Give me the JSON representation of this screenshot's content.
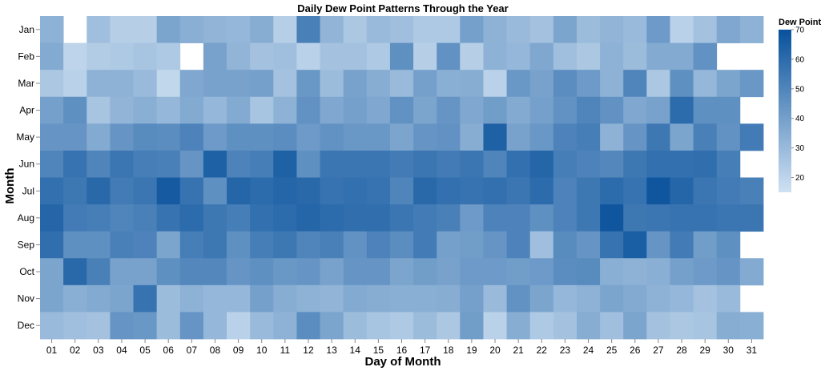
{
  "chart_data": {
    "type": "heatmap",
    "title": "Daily Dew Point Patterns Through the Year",
    "xlabel": "Day of Month",
    "ylabel": "Month",
    "x_categories": [
      "01",
      "02",
      "03",
      "04",
      "05",
      "06",
      "07",
      "08",
      "09",
      "10",
      "11",
      "12",
      "13",
      "14",
      "15",
      "16",
      "17",
      "18",
      "19",
      "20",
      "21",
      "22",
      "23",
      "24",
      "25",
      "26",
      "27",
      "28",
      "29",
      "30",
      "31"
    ],
    "y_categories": [
      "Jan",
      "Feb",
      "Mar",
      "Apr",
      "May",
      "Jun",
      "Jul",
      "Aug",
      "Sep",
      "Oct",
      "Nov",
      "Dec"
    ],
    "legend": {
      "title": "Dew Point",
      "placement": "top-right",
      "ticks": [
        20,
        30,
        40,
        50,
        60,
        70
      ],
      "domain": [
        15,
        70
      ]
    },
    "color_range": [
      "#cfe1f2",
      "#08519c"
    ],
    "values": [
      [
        33,
        null,
        28,
        22,
        22,
        38,
        34,
        32,
        31,
        35,
        22,
        52,
        32,
        25,
        30,
        28,
        24,
        24,
        40,
        33,
        30,
        27,
        38,
        29,
        32,
        30,
        42,
        21,
        27,
        37,
        33
      ],
      [
        36,
        20,
        23,
        24,
        26,
        24,
        null,
        39,
        32,
        27,
        28,
        21,
        27,
        27,
        24,
        46,
        22,
        45,
        22,
        33,
        31,
        37,
        28,
        25,
        33,
        29,
        36,
        36,
        45,
        null,
        null
      ],
      [
        25,
        21,
        33,
        33,
        30,
        19,
        37,
        39,
        39,
        40,
        27,
        43,
        29,
        39,
        35,
        30,
        40,
        34,
        35,
        21,
        43,
        39,
        47,
        42,
        33,
        50,
        25,
        46,
        31,
        38,
        43
      ],
      [
        40,
        46,
        26,
        32,
        34,
        31,
        36,
        31,
        36,
        26,
        33,
        45,
        37,
        40,
        37,
        45,
        38,
        44,
        37,
        41,
        36,
        40,
        45,
        50,
        45,
        37,
        39,
        60,
        46,
        46,
        null
      ],
      [
        44,
        44,
        36,
        44,
        48,
        47,
        51,
        42,
        46,
        46,
        47,
        42,
        45,
        43,
        43,
        38,
        44,
        45,
        35,
        64,
        39,
        43,
        51,
        53,
        33,
        44,
        55,
        38,
        52,
        45,
        54
      ],
      [
        50,
        57,
        50,
        56,
        53,
        52,
        44,
        64,
        51,
        53,
        64,
        46,
        56,
        56,
        56,
        54,
        56,
        54,
        56,
        50,
        58,
        62,
        53,
        51,
        49,
        55,
        58,
        58,
        59,
        53,
        null
      ],
      [
        58,
        55,
        61,
        54,
        56,
        66,
        57,
        46,
        62,
        60,
        62,
        61,
        57,
        58,
        57,
        50,
        61,
        58,
        57,
        58,
        56,
        60,
        51,
        55,
        60,
        57,
        68,
        62,
        56,
        54,
        52
      ],
      [
        62,
        54,
        53,
        50,
        52,
        57,
        60,
        55,
        53,
        58,
        60,
        62,
        60,
        59,
        59,
        56,
        54,
        52,
        42,
        51,
        51,
        46,
        51,
        55,
        68,
        55,
        56,
        57,
        57,
        56,
        56
      ],
      [
        59,
        46,
        46,
        52,
        51,
        38,
        53,
        55,
        46,
        53,
        55,
        50,
        52,
        45,
        51,
        47,
        54,
        40,
        41,
        44,
        51,
        28,
        48,
        44,
        57,
        65,
        44,
        54,
        41,
        46,
        null
      ],
      [
        38,
        61,
        52,
        39,
        39,
        46,
        49,
        49,
        44,
        46,
        43,
        44,
        39,
        44,
        44,
        38,
        41,
        39,
        42,
        42,
        41,
        42,
        47,
        48,
        34,
        33,
        34,
        40,
        42,
        44,
        36
      ],
      [
        38,
        34,
        36,
        38,
        57,
        29,
        33,
        31,
        31,
        40,
        35,
        33,
        32,
        36,
        35,
        34,
        34,
        35,
        40,
        30,
        45,
        38,
        31,
        33,
        38,
        36,
        33,
        31,
        27,
        30,
        null
      ],
      [
        30,
        28,
        27,
        44,
        43,
        29,
        44,
        31,
        21,
        30,
        33,
        47,
        38,
        29,
        26,
        24,
        29,
        25,
        41,
        21,
        35,
        24,
        27,
        35,
        28,
        38,
        27,
        25,
        26,
        35,
        34
      ]
    ]
  }
}
